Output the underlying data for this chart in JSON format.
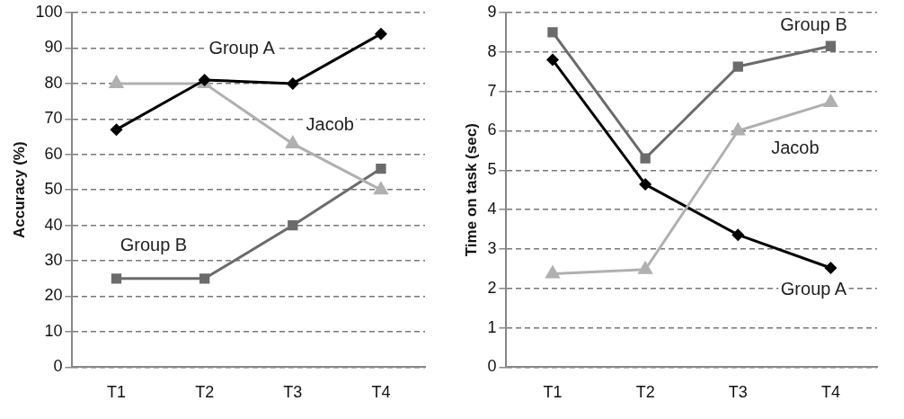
{
  "chart_data": [
    {
      "type": "line",
      "ylabel": "Accuracy (%)",
      "categories": [
        "T1",
        "T2",
        "T3",
        "T4"
      ],
      "ylim": [
        0,
        100
      ],
      "yticks": [
        0,
        10,
        20,
        30,
        40,
        50,
        60,
        70,
        80,
        90,
        100
      ],
      "grid": "y",
      "line_style": "solid",
      "series": [
        {
          "name": "Group A",
          "color": "#000000",
          "marker": "diamond",
          "values": [
            67,
            81,
            80,
            94
          ]
        },
        {
          "name": "Jacob",
          "color": "#b0b0b0",
          "marker": "triangle",
          "values": [
            80,
            80,
            63,
            50
          ]
        },
        {
          "name": "Group B",
          "color": "#6b6b6b",
          "marker": "square",
          "values": [
            25,
            25,
            40,
            56
          ]
        }
      ]
    },
    {
      "type": "line",
      "ylabel": "Time on task (sec)",
      "categories": [
        "T1",
        "T2",
        "T3",
        "T4"
      ],
      "ylim": [
        0,
        9
      ],
      "yticks": [
        0,
        1,
        2,
        3,
        4,
        5,
        6,
        7,
        8,
        9
      ],
      "grid": "y",
      "line_style": "solid",
      "series": [
        {
          "name": "Group B",
          "color": "#6b6b6b",
          "marker": "square",
          "values": [
            8.5,
            5.3,
            7.63,
            8.15
          ]
        },
        {
          "name": "Jacob",
          "color": "#b0b0b0",
          "marker": "triangle",
          "values": [
            2.37,
            2.48,
            6.0,
            6.72
          ]
        },
        {
          "name": "Group A",
          "color": "#000000",
          "marker": "diamond",
          "values": [
            7.8,
            4.64,
            3.36,
            2.52
          ]
        }
      ]
    }
  ]
}
